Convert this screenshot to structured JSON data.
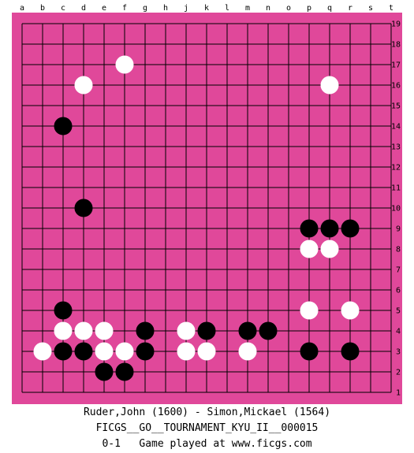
{
  "board": {
    "size": 19,
    "columns": [
      "a",
      "b",
      "c",
      "d",
      "e",
      "f",
      "g",
      "h",
      "j",
      "k",
      "l",
      "m",
      "n",
      "o",
      "p",
      "q",
      "r",
      "s",
      "t"
    ],
    "rows": [
      "19",
      "18",
      "17",
      "16",
      "15",
      "14",
      "13",
      "12",
      "11",
      "10",
      "9",
      "8",
      "7",
      "6",
      "5",
      "4",
      "3",
      "2",
      "1"
    ],
    "colors": {
      "board": "#e0489a",
      "line": "#000000",
      "black_stone": "#000000",
      "white_stone": "#ffffff"
    },
    "stones": [
      {
        "color": "white",
        "point": "f17"
      },
      {
        "color": "white",
        "point": "d16"
      },
      {
        "color": "white",
        "point": "q16"
      },
      {
        "color": "black",
        "point": "c14"
      },
      {
        "color": "black",
        "point": "d10"
      },
      {
        "color": "black",
        "point": "p9"
      },
      {
        "color": "black",
        "point": "q9"
      },
      {
        "color": "black",
        "point": "r9"
      },
      {
        "color": "white",
        "point": "p8"
      },
      {
        "color": "white",
        "point": "q8"
      },
      {
        "color": "black",
        "point": "c5"
      },
      {
        "color": "white",
        "point": "p5"
      },
      {
        "color": "white",
        "point": "r5"
      },
      {
        "color": "white",
        "point": "c4"
      },
      {
        "color": "white",
        "point": "d4"
      },
      {
        "color": "white",
        "point": "e4"
      },
      {
        "color": "black",
        "point": "g4"
      },
      {
        "color": "white",
        "point": "j4"
      },
      {
        "color": "black",
        "point": "k4"
      },
      {
        "color": "black",
        "point": "m4"
      },
      {
        "color": "black",
        "point": "n4"
      },
      {
        "color": "white",
        "point": "b3"
      },
      {
        "color": "black",
        "point": "c3"
      },
      {
        "color": "black",
        "point": "d3"
      },
      {
        "color": "white",
        "point": "e3"
      },
      {
        "color": "white",
        "point": "f3"
      },
      {
        "color": "black",
        "point": "g3"
      },
      {
        "color": "white",
        "point": "j3"
      },
      {
        "color": "white",
        "point": "k3"
      },
      {
        "color": "white",
        "point": "m3"
      },
      {
        "color": "black",
        "point": "p3"
      },
      {
        "color": "black",
        "point": "r3"
      },
      {
        "color": "black",
        "point": "e2"
      },
      {
        "color": "black",
        "point": "f2"
      }
    ]
  },
  "game_info": {
    "players": "Ruder,John (1600) - Simon,Mickael (1564)",
    "event": "FICGS__GO__TOURNAMENT_KYU_II__000015",
    "result": "0-1   Game played at www.ficgs.com"
  }
}
